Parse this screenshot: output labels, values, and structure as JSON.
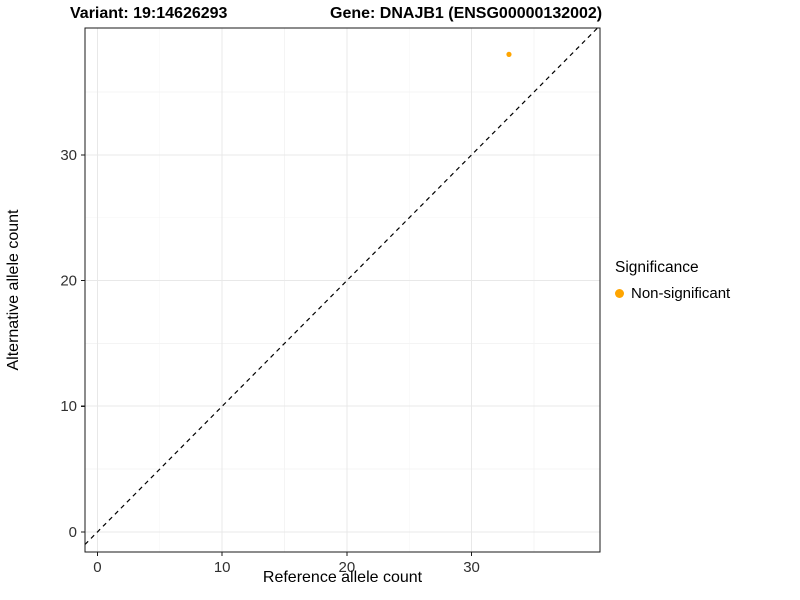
{
  "header": {
    "variant_title": "Variant: 19:14626293",
    "gene_title": "Gene: DNAJB1 (ENSG00000132002)"
  },
  "chart_data": {
    "type": "scatter",
    "titles": [
      "Variant: 19:14626293",
      "Gene: DNAJB1 (ENSG00000132002)"
    ],
    "xlabel": "Reference allele count",
    "ylabel": "Alternative allele count",
    "xlim": [
      -1.0,
      40.3
    ],
    "ylim": [
      -1.6,
      40.1
    ],
    "x_ticks": [
      0,
      10,
      20,
      30
    ],
    "y_ticks": [
      0,
      10,
      20,
      30
    ],
    "grid": true,
    "legend_position": "right",
    "series": [
      {
        "name": "Non-significant",
        "color": "#FFA500",
        "points": [
          {
            "x": 33,
            "y": 38
          }
        ]
      }
    ],
    "reference_line": {
      "kind": "identity",
      "style": "dashed",
      "color": "#000000"
    }
  },
  "legend": {
    "title": "Significance",
    "entries": [
      {
        "label": "Non-significant",
        "color": "#FFA500"
      }
    ]
  },
  "colors": {
    "point": "#FFA500",
    "grid_major": "#e8e8e8",
    "grid_minor": "#f4f4f4",
    "panel_border": "#1a1a1a",
    "tick_text": "#303030"
  }
}
